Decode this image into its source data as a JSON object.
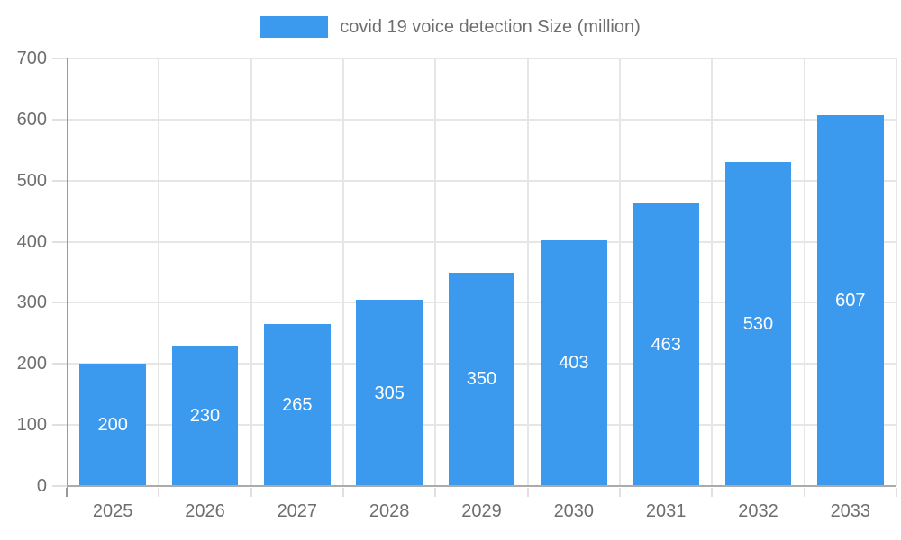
{
  "chart_data": {
    "type": "bar",
    "title": "covid 19 voice detection Size (million)",
    "legend": {
      "position": "top",
      "label": "covid 19 voice detection Size (million)"
    },
    "categories": [
      "2025",
      "2026",
      "2027",
      "2028",
      "2029",
      "2030",
      "2031",
      "2032",
      "2033"
    ],
    "series": [
      {
        "name": "covid 19 voice detection Size (million)",
        "values": [
          200,
          230,
          265,
          305,
          350,
          403,
          463,
          530,
          607
        ],
        "color": "#3B99EE"
      }
    ],
    "xlabel": "",
    "ylabel": "",
    "ylim": [
      0,
      700
    ],
    "y_ticks": [
      0,
      100,
      200,
      300,
      400,
      500,
      600,
      700
    ],
    "grid": true,
    "value_labels": {
      "visible": true,
      "position": "center"
    }
  },
  "colors": {
    "bar": "#3B99EE",
    "grid_line": "#E6E6E6",
    "tick_mark": "#E0E0E0",
    "axis_line_x": "#ABABAB",
    "axis_line_y": "#999999",
    "tick_text": "#6E6E6E",
    "value_label": "#FFFFFF",
    "background": "#FFFFFF"
  }
}
